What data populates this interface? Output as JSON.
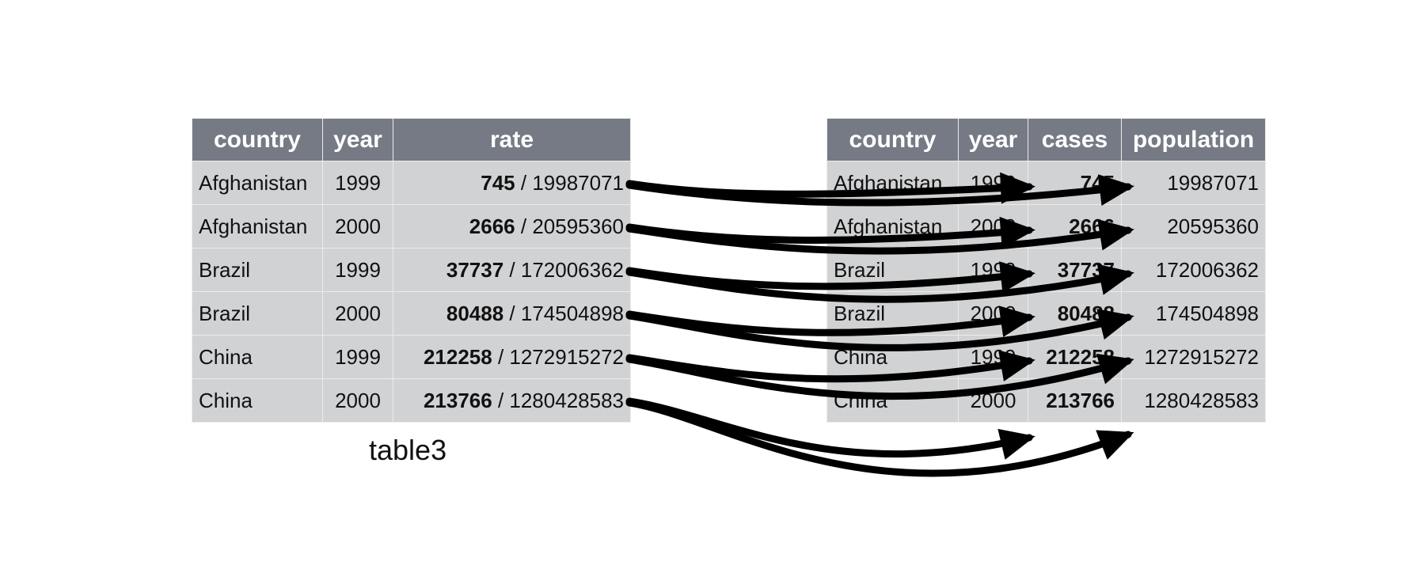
{
  "left_table": {
    "caption": "table3",
    "headers": [
      "country",
      "year",
      "rate"
    ],
    "rows": [
      {
        "country": "Afghanistan",
        "year": "1999",
        "cases": "745",
        "sep": " / ",
        "population": "19987071"
      },
      {
        "country": "Afghanistan",
        "year": "2000",
        "cases": "2666",
        "sep": " / ",
        "population": "20595360"
      },
      {
        "country": "Brazil",
        "year": "1999",
        "cases": "37737",
        "sep": " / ",
        "population": "172006362"
      },
      {
        "country": "Brazil",
        "year": "2000",
        "cases": "80488",
        "sep": " / ",
        "population": "174504898"
      },
      {
        "country": "China",
        "year": "1999",
        "cases": "212258",
        "sep": " / ",
        "population": "1272915272"
      },
      {
        "country": "China",
        "year": "2000",
        "cases": "213766",
        "sep": " / ",
        "population": "1280428583"
      }
    ]
  },
  "right_table": {
    "headers": [
      "country",
      "year",
      "cases",
      "population"
    ],
    "rows": [
      {
        "country": "Afghanistan",
        "year": "1999",
        "cases": "745",
        "population": "19987071"
      },
      {
        "country": "Afghanistan",
        "year": "2000",
        "cases": "2666",
        "population": "20595360"
      },
      {
        "country": "Brazil",
        "year": "1999",
        "cases": "37737",
        "population": "172006362"
      },
      {
        "country": "Brazil",
        "year": "2000",
        "cases": "80488",
        "population": "174504898"
      },
      {
        "country": "China",
        "year": "1999",
        "cases": "212258",
        "population": "1272915272"
      },
      {
        "country": "China",
        "year": "2000",
        "cases": "213766",
        "population": "1280428583"
      }
    ]
  },
  "colors": {
    "header_bg": "#767a84",
    "cell_bg": "#d1d2d4",
    "arrow": "#000000"
  }
}
